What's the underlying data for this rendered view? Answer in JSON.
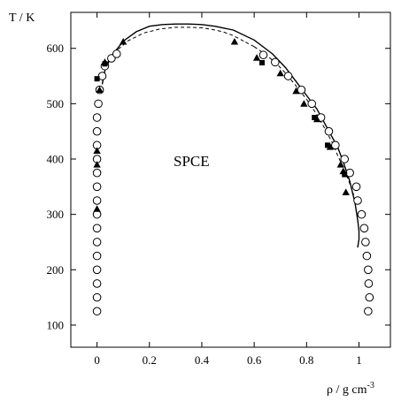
{
  "chart_data": {
    "type": "scatter",
    "title": "",
    "ylabel": "T / K",
    "xlabel_main": "ρ / g cm",
    "xlabel_sup": "-3",
    "annotation": "SPCE",
    "xlim": [
      -0.1,
      1.12
    ],
    "ylim": [
      60,
      665
    ],
    "x_ticks": [
      0,
      0.2,
      0.4,
      0.6,
      0.8,
      1
    ],
    "x_tick_labels": [
      "0",
      "0.2",
      "0.4",
      "0.6",
      "0.8",
      "1"
    ],
    "y_ticks": [
      100,
      200,
      300,
      400,
      500,
      600
    ],
    "y_tick_labels": [
      "100",
      "200",
      "300",
      "400",
      "500",
      "600"
    ],
    "grid": false,
    "legend": "none",
    "series": [
      {
        "marker": "open-circle",
        "points": [
          [
            0.0,
            125
          ],
          [
            0.0,
            150
          ],
          [
            0.0,
            175
          ],
          [
            0.0,
            200
          ],
          [
            0.0,
            225
          ],
          [
            0.0,
            250
          ],
          [
            0.0,
            275
          ],
          [
            0.0,
            300
          ],
          [
            0.0,
            325
          ],
          [
            0.0,
            350
          ],
          [
            0.0,
            375
          ],
          [
            0.0,
            400
          ],
          [
            0.0,
            425
          ],
          [
            0.0,
            450
          ],
          [
            0.0,
            475
          ],
          [
            0.005,
            500
          ],
          [
            0.01,
            525
          ],
          [
            0.02,
            550
          ],
          [
            0.03,
            568
          ],
          [
            0.055,
            582
          ],
          [
            0.075,
            590
          ],
          [
            1.035,
            125
          ],
          [
            1.04,
            150
          ],
          [
            1.037,
            175
          ],
          [
            1.035,
            200
          ],
          [
            1.03,
            225
          ],
          [
            1.025,
            250
          ],
          [
            1.02,
            275
          ],
          [
            1.01,
            300
          ],
          [
            0.995,
            325
          ],
          [
            0.99,
            350
          ],
          [
            0.965,
            375
          ],
          [
            0.945,
            400
          ],
          [
            0.91,
            425
          ],
          [
            0.885,
            450
          ],
          [
            0.855,
            475
          ],
          [
            0.82,
            500
          ],
          [
            0.78,
            525
          ],
          [
            0.73,
            550
          ],
          [
            0.68,
            575
          ],
          [
            0.635,
            588
          ]
        ]
      },
      {
        "marker": "filled-triangle",
        "points": [
          [
            0.0,
            310
          ],
          [
            0.0,
            390
          ],
          [
            0.0,
            415
          ],
          [
            0.01,
            525
          ],
          [
            0.03,
            575
          ],
          [
            0.1,
            612
          ],
          [
            0.525,
            612
          ],
          [
            0.61,
            583
          ],
          [
            0.7,
            555
          ],
          [
            0.76,
            523
          ],
          [
            0.79,
            500
          ],
          [
            0.84,
            472
          ],
          [
            0.89,
            422
          ],
          [
            0.93,
            390
          ],
          [
            0.94,
            378
          ],
          [
            0.95,
            340
          ]
        ]
      },
      {
        "marker": "filled-square",
        "points": [
          [
            0.0,
            545
          ],
          [
            0.03,
            572
          ],
          [
            0.63,
            574
          ],
          [
            0.83,
            475
          ],
          [
            0.88,
            425
          ],
          [
            0.945,
            372
          ]
        ]
      }
    ],
    "lines": [
      {
        "style": "solid",
        "points": [
          [
            0.995,
            240
          ],
          [
            1.0,
            255
          ],
          [
            1.0,
            270
          ],
          [
            0.995,
            290
          ],
          [
            0.985,
            320
          ],
          [
            0.965,
            360
          ],
          [
            0.94,
            395
          ],
          [
            0.92,
            420
          ],
          [
            0.88,
            455
          ],
          [
            0.84,
            490
          ],
          [
            0.8,
            515
          ],
          [
            0.76,
            540
          ],
          [
            0.72,
            565
          ],
          [
            0.67,
            590
          ],
          [
            0.6,
            615
          ],
          [
            0.52,
            633
          ],
          [
            0.45,
            640
          ],
          [
            0.4,
            643
          ],
          [
            0.35,
            644
          ],
          [
            0.3,
            644
          ],
          [
            0.25,
            643
          ],
          [
            0.2,
            640
          ],
          [
            0.15,
            630
          ],
          [
            0.1,
            613
          ],
          [
            0.07,
            595
          ],
          [
            0.05,
            583
          ],
          [
            0.03,
            560
          ],
          [
            0.02,
            535
          ]
        ]
      },
      {
        "style": "dashed",
        "points": [
          [
            0.6,
            603
          ],
          [
            0.64,
            590
          ],
          [
            0.68,
            575
          ],
          [
            0.72,
            555
          ],
          [
            0.76,
            532
          ],
          [
            0.8,
            508
          ],
          [
            0.84,
            480
          ],
          [
            0.87,
            455
          ],
          [
            0.9,
            428
          ],
          [
            0.92,
            405
          ],
          [
            0.94,
            385
          ],
          [
            0.96,
            362
          ],
          [
            0.98,
            335
          ],
          [
            0.56,
            613
          ],
          [
            0.52,
            623
          ],
          [
            0.48,
            630
          ],
          [
            0.44,
            634
          ],
          [
            0.4,
            637
          ],
          [
            0.36,
            638
          ],
          [
            0.3,
            638
          ],
          [
            0.24,
            635
          ],
          [
            0.18,
            628
          ],
          [
            0.12,
            614
          ],
          [
            0.08,
            598
          ],
          [
            0.05,
            580
          ],
          [
            0.03,
            560
          ]
        ]
      }
    ]
  }
}
